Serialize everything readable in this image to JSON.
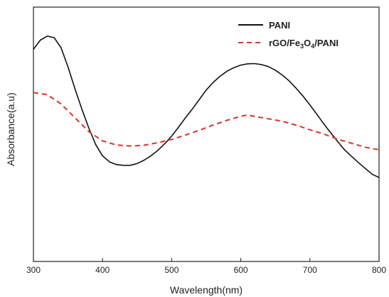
{
  "chart_data": {
    "type": "line",
    "title": "",
    "xlabel": "Wavelength(nm)",
    "ylabel": "Absorbance(a.u)",
    "xlim": [
      300,
      800
    ],
    "ylim": [
      0,
      1
    ],
    "xticks": [
      300,
      400,
      500,
      600,
      700,
      800
    ],
    "yticks_shown": false,
    "grid": false,
    "legend_position": "top-right",
    "series": [
      {
        "name": "PANI",
        "color": "#111111",
        "style": "solid",
        "x": [
          300,
          310,
          320,
          330,
          340,
          350,
          360,
          370,
          380,
          390,
          400,
          410,
          420,
          430,
          440,
          450,
          460,
          470,
          480,
          490,
          500,
          510,
          520,
          530,
          540,
          550,
          560,
          570,
          580,
          590,
          600,
          610,
          620,
          630,
          640,
          650,
          660,
          670,
          680,
          690,
          700,
          710,
          720,
          730,
          740,
          750,
          760,
          770,
          780,
          790,
          800
        ],
        "y": [
          0.834,
          0.87,
          0.886,
          0.88,
          0.84,
          0.765,
          0.68,
          0.6,
          0.525,
          0.46,
          0.415,
          0.392,
          0.381,
          0.378,
          0.378,
          0.385,
          0.398,
          0.415,
          0.437,
          0.463,
          0.493,
          0.528,
          0.565,
          0.6,
          0.637,
          0.674,
          0.704,
          0.728,
          0.748,
          0.762,
          0.772,
          0.777,
          0.778,
          0.774,
          0.766,
          0.752,
          0.733,
          0.71,
          0.681,
          0.65,
          0.615,
          0.579,
          0.541,
          0.506,
          0.472,
          0.439,
          0.414,
          0.389,
          0.366,
          0.343,
          0.33
        ]
      },
      {
        "name": "rGO/Fe3O4/PANI",
        "color": "#d9342b",
        "style": "dashed",
        "x": [
          300,
          320,
          340,
          360,
          380,
          400,
          420,
          440,
          460,
          480,
          500,
          520,
          540,
          560,
          580,
          600,
          610,
          620,
          640,
          660,
          680,
          700,
          720,
          740,
          760,
          780,
          800
        ],
        "y": [
          0.664,
          0.656,
          0.619,
          0.565,
          0.511,
          0.474,
          0.458,
          0.454,
          0.457,
          0.467,
          0.48,
          0.497,
          0.516,
          0.536,
          0.555,
          0.571,
          0.576,
          0.57,
          0.561,
          0.551,
          0.536,
          0.518,
          0.501,
          0.481,
          0.465,
          0.449,
          0.439
        ]
      }
    ]
  }
}
